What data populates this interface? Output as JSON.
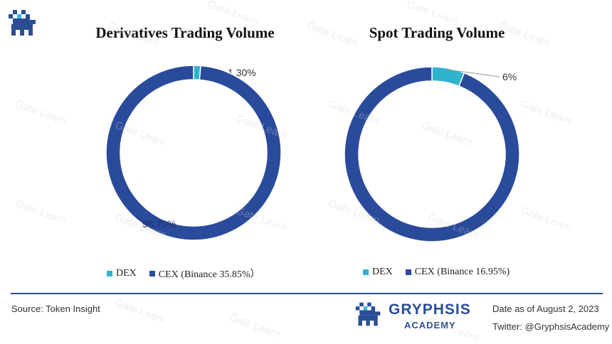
{
  "watermark": "Gate Learn",
  "colors": {
    "dex": "#2fb3cc",
    "cex": "#2a4b9b",
    "divider": "#2e4d8f",
    "brand": "#2a4d96"
  },
  "chart_data": [
    {
      "type": "pie",
      "title": "Derivatives Trading Volume",
      "slices": [
        {
          "label": "DEX",
          "value": 1.3,
          "value_label": "1.30%"
        },
        {
          "label": "CEX",
          "value": 98.7,
          "value_label": "98.70%"
        }
      ],
      "legend": [
        "DEX",
        "CEX (Binance 35.85%）"
      ]
    },
    {
      "type": "pie",
      "title": "Spot Trading Volume",
      "slices": [
        {
          "label": "DEX",
          "value": 6,
          "value_label": "6%"
        },
        {
          "label": "CEX",
          "value": 94,
          "value_label": ""
        }
      ],
      "legend": [
        "DEX",
        "CEX (Binance 16.95%)"
      ]
    }
  ],
  "footer": {
    "source": "Source: Token Insight",
    "brand": "GRYPHSIS",
    "brand_sub": "ACADEMY",
    "date": "Date as of August 2, 2023",
    "twitter": "Twitter: @GryphsisAcademy"
  }
}
